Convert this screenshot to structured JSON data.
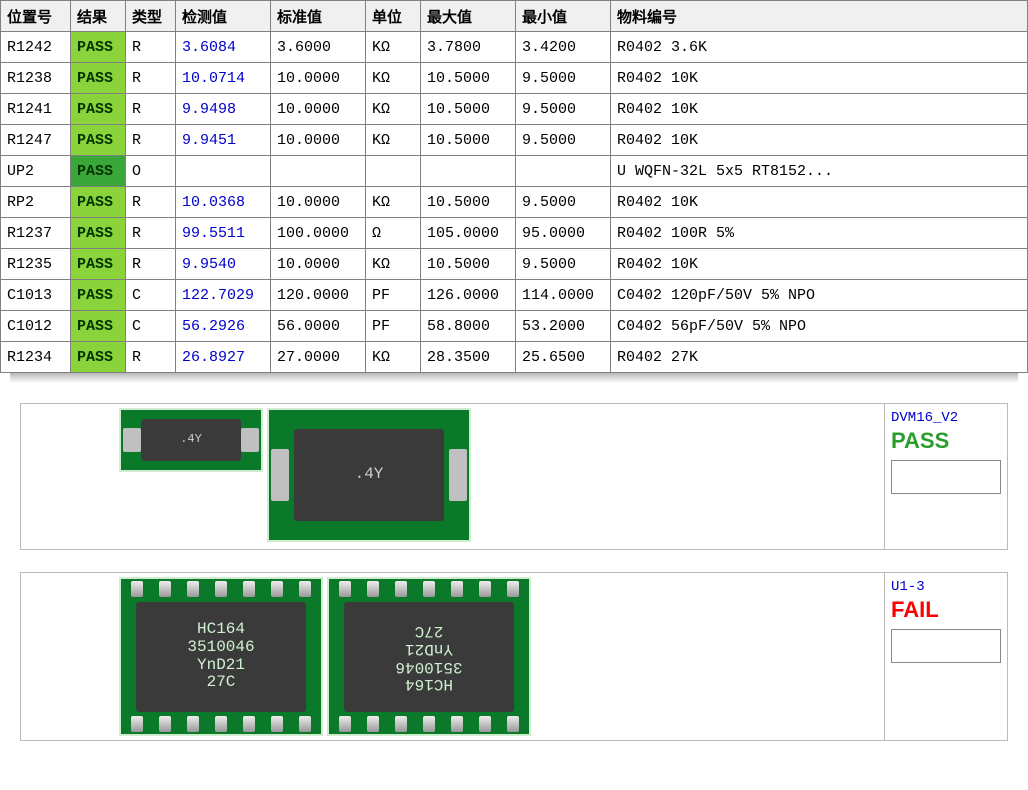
{
  "table": {
    "headers": {
      "position": "位置号",
      "result": "结果",
      "type": "类型",
      "measured": "检测值",
      "standard": "标准值",
      "unit": "单位",
      "max": "最大值",
      "min": "最小值",
      "part": "物料编号"
    },
    "colors": {
      "pass_bg_light": "#8bd33b",
      "pass_bg_dark": "#3aa63a",
      "pass_fg": "#003300",
      "measured_fg": "#0000cc",
      "header_bg": "#f0f0f0",
      "border": "#808080"
    },
    "rows": [
      {
        "position": "R1242",
        "result": "PASS",
        "result_bg": "#8bd33b",
        "type": "R",
        "measured": "3.6084",
        "standard": "3.6000",
        "unit": "KΩ",
        "max": "3.7800",
        "min": "3.4200",
        "part": "R0402 3.6K"
      },
      {
        "position": "R1238",
        "result": "PASS",
        "result_bg": "#8bd33b",
        "type": "R",
        "measured": "10.0714",
        "standard": "10.0000",
        "unit": "KΩ",
        "max": "10.5000",
        "min": "9.5000",
        "part": "R0402 10K"
      },
      {
        "position": "R1241",
        "result": "PASS",
        "result_bg": "#8bd33b",
        "type": "R",
        "measured": "9.9498",
        "standard": "10.0000",
        "unit": "KΩ",
        "max": "10.5000",
        "min": "9.5000",
        "part": "R0402 10K"
      },
      {
        "position": "R1247",
        "result": "PASS",
        "result_bg": "#8bd33b",
        "type": "R",
        "measured": "9.9451",
        "standard": "10.0000",
        "unit": "KΩ",
        "max": "10.5000",
        "min": "9.5000",
        "part": "R0402 10K"
      },
      {
        "position": "UP2",
        "result": "PASS",
        "result_bg": "#3aa63a",
        "type": "O",
        "measured": "",
        "standard": "",
        "unit": "",
        "max": "",
        "min": "",
        "part": "U WQFN-32L 5x5  RT8152..."
      },
      {
        "position": "RP2",
        "result": "PASS",
        "result_bg": "#8bd33b",
        "type": "R",
        "measured": "10.0368",
        "standard": "10.0000",
        "unit": "KΩ",
        "max": "10.5000",
        "min": "9.5000",
        "part": "R0402 10K"
      },
      {
        "position": "R1237",
        "result": "PASS",
        "result_bg": "#8bd33b",
        "type": "R",
        "measured": "99.5511",
        "standard": "100.0000",
        "unit": "Ω",
        "max": "105.0000",
        "min": "95.0000",
        "part": "R0402 100R 5%"
      },
      {
        "position": "R1235",
        "result": "PASS",
        "result_bg": "#8bd33b",
        "type": "R",
        "measured": "9.9540",
        "standard": "10.0000",
        "unit": "KΩ",
        "max": "10.5000",
        "min": "9.5000",
        "part": "R0402 10K"
      },
      {
        "position": "C1013",
        "result": "PASS",
        "result_bg": "#8bd33b",
        "type": "C",
        "measured": "122.7029",
        "standard": "120.0000",
        "unit": "PF",
        "max": "126.0000",
        "min": "114.0000",
        "part": "C0402 120pF/50V 5% NPO"
      },
      {
        "position": "C1012",
        "result": "PASS",
        "result_bg": "#8bd33b",
        "type": "C",
        "measured": "56.2926",
        "standard": "56.0000",
        "unit": "PF",
        "max": "58.8000",
        "min": "53.2000",
        "part": "C0402 56pF/50V 5% NPO"
      },
      {
        "position": "R1234",
        "result": "PASS",
        "result_bg": "#8bd33b",
        "type": "R",
        "measured": "26.8927",
        "standard": "27.0000",
        "unit": "KΩ",
        "max": "28.3500",
        "min": "25.6500",
        "part": "R0402 27K"
      }
    ]
  },
  "panels": [
    {
      "name": "DVM16_V2",
      "status": "PASS",
      "status_class": "pass",
      "images": [
        {
          "kind": "smd-sm",
          "marking": ".4Y"
        },
        {
          "kind": "smd-lg",
          "marking": ".4Y"
        }
      ]
    },
    {
      "name": "U1-3",
      "status": "FAIL",
      "status_class": "fail",
      "images": [
        {
          "kind": "ic",
          "marking": "HC164\n3510046\nYnD21\n27C",
          "flip": false
        },
        {
          "kind": "ic",
          "marking": "HC164\n3510046\nYnD21\n27C",
          "flip": true
        }
      ]
    }
  ],
  "colors": {
    "pcb_green": "#0a7a2a",
    "ic_body": "#3a3a3a",
    "ic_text": "#d0f0d0",
    "pass_green": "#2a9d2a",
    "fail_red": "#ff0000",
    "link_blue": "#0000cc"
  }
}
